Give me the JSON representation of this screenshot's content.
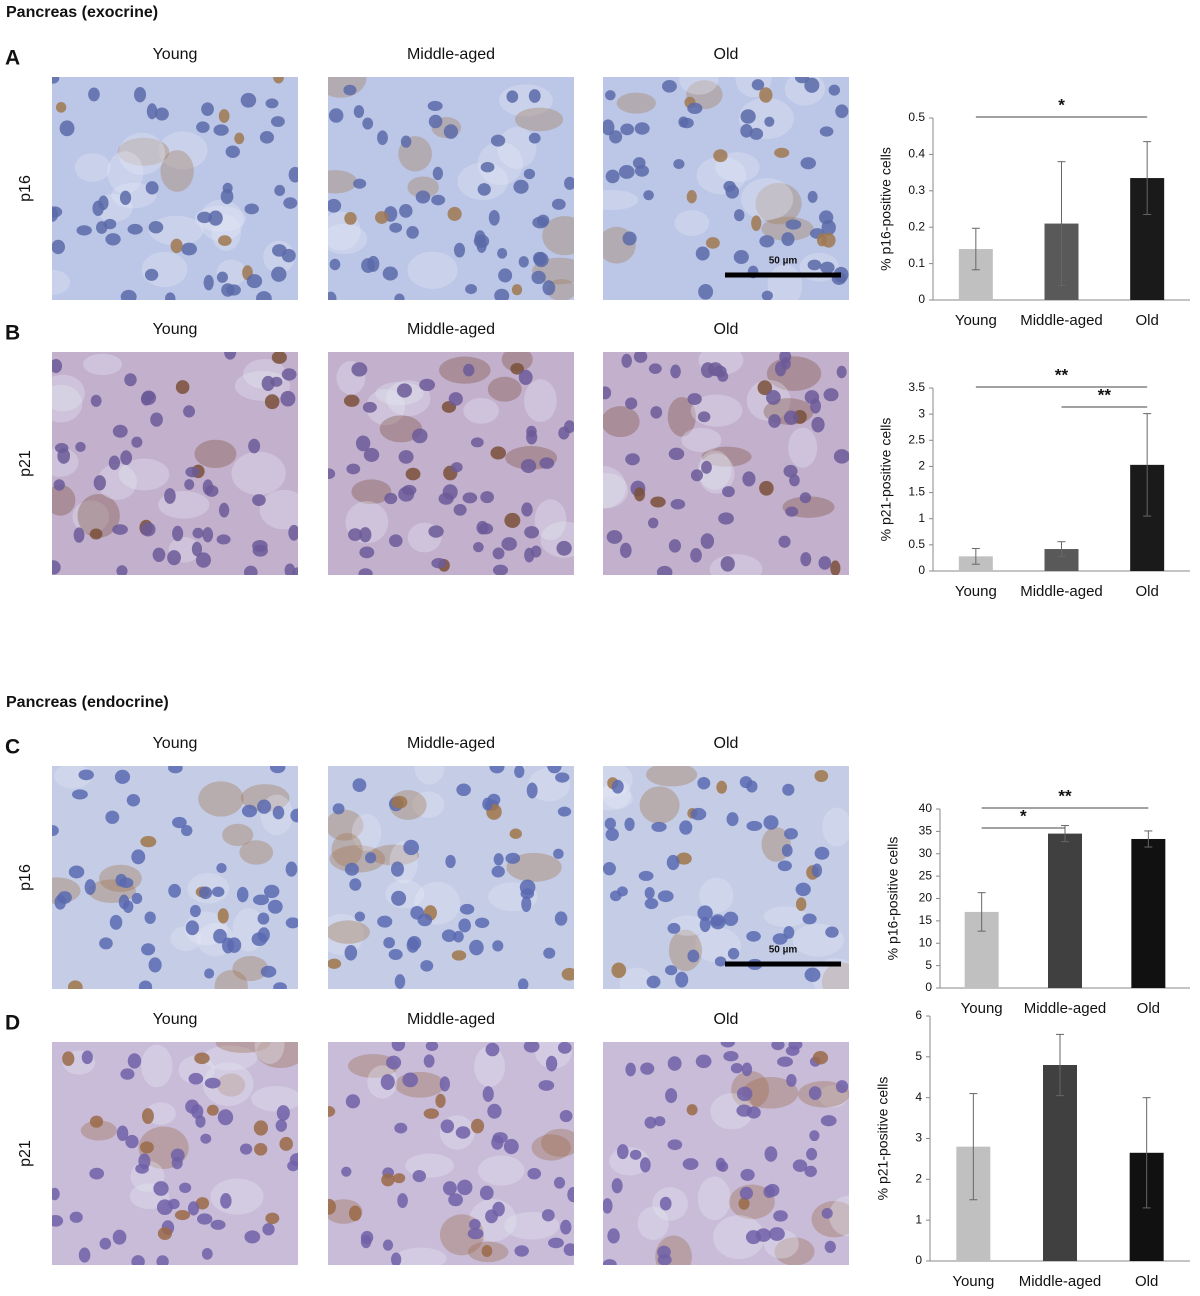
{
  "sections": [
    {
      "title": "Pancreas (exocrine)"
    },
    {
      "title": "Pancreas (endocrine)"
    }
  ],
  "panels": [
    {
      "letter": "A",
      "stain": "p16",
      "columns": [
        "Young",
        "Middle-aged",
        "Old"
      ],
      "scale_bar": "50 µm"
    },
    {
      "letter": "B",
      "stain": "p21",
      "columns": [
        "Young",
        "Middle-aged",
        "Old"
      ]
    },
    {
      "letter": "C",
      "stain": "p16",
      "columns": [
        "Young",
        "Middle-aged",
        "Old"
      ],
      "scale_bar": "50 µm"
    },
    {
      "letter": "D",
      "stain": "p21",
      "columns": [
        "Young",
        "Middle-aged",
        "Old"
      ]
    }
  ],
  "chart_data": [
    {
      "type": "bar",
      "y_label": "% p16-positive cells",
      "categories": [
        "Young",
        "Middle-aged",
        "Old"
      ],
      "values": [
        0.14,
        0.21,
        0.335
      ],
      "errors": [
        0.057,
        0.17,
        0.1
      ],
      "colors": [
        "#c0c0c0",
        "#595959",
        "#1a1a1a"
      ],
      "ylim": [
        0,
        0.5
      ],
      "yticks": [
        0,
        0.1,
        0.2,
        0.3,
        0.4,
        0.5
      ],
      "annotations": [
        {
          "text": "*",
          "between": [
            "Young",
            "Old"
          ]
        }
      ]
    },
    {
      "type": "bar",
      "y_label": "% p21-positive cells",
      "categories": [
        "Young",
        "Middle-aged",
        "Old"
      ],
      "values": [
        0.28,
        0.42,
        2.03
      ],
      "errors": [
        0.15,
        0.14,
        0.98
      ],
      "colors": [
        "#c0c0c0",
        "#595959",
        "#1a1a1a"
      ],
      "ylim": [
        0,
        3.5
      ],
      "yticks": [
        0,
        0.5,
        1,
        1.5,
        2,
        2.5,
        3,
        3.5
      ],
      "annotations": [
        {
          "text": "**",
          "between": [
            "Young",
            "Old"
          ]
        },
        {
          "text": "**",
          "between": [
            "Middle-aged",
            "Old"
          ]
        }
      ]
    },
    {
      "type": "bar",
      "y_label": "% p16-positive cells",
      "categories": [
        "Young",
        "Middle-aged",
        "Old"
      ],
      "values": [
        17,
        34.5,
        33.3
      ],
      "errors": [
        4.3,
        1.8,
        1.8
      ],
      "colors": [
        "#c0c0c0",
        "#404040",
        "#111111"
      ],
      "ylim": [
        0,
        40
      ],
      "yticks": [
        0,
        5,
        10,
        15,
        20,
        25,
        30,
        35,
        40
      ],
      "annotations": [
        {
          "text": "**",
          "between": [
            "Young",
            "Old"
          ]
        },
        {
          "text": "*",
          "between": [
            "Young",
            "Middle-aged"
          ]
        }
      ]
    },
    {
      "type": "bar",
      "y_label": "% p21-positive cells",
      "categories": [
        "Young",
        "Middle-aged",
        "Old"
      ],
      "values": [
        2.8,
        4.8,
        2.65
      ],
      "errors": [
        1.3,
        0.75,
        1.35
      ],
      "colors": [
        "#c0c0c0",
        "#404040",
        "#111111"
      ],
      "ylim": [
        0,
        6
      ],
      "yticks": [
        0,
        1,
        2,
        3,
        4,
        5,
        6
      ]
    }
  ]
}
